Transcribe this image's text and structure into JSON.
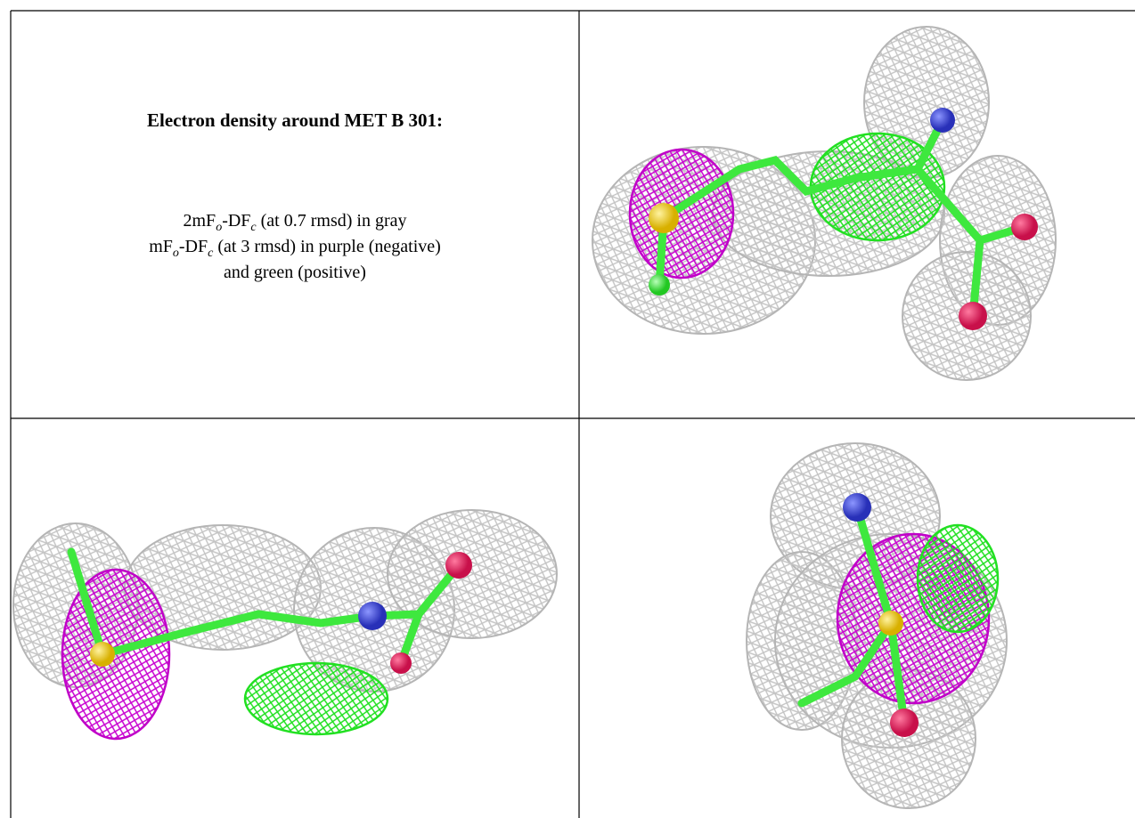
{
  "caption": {
    "title": "Electron density around MET B 301:",
    "lines": [
      [
        "2mF",
        "o",
        "-DF",
        "c",
        " (at 0.7 rmsd) in gray"
      ],
      [
        "mF",
        "o",
        "-DF",
        "c",
        " (at 3 rmsd) in purple (negative)"
      ],
      [
        "and green (positive)"
      ]
    ]
  }
}
